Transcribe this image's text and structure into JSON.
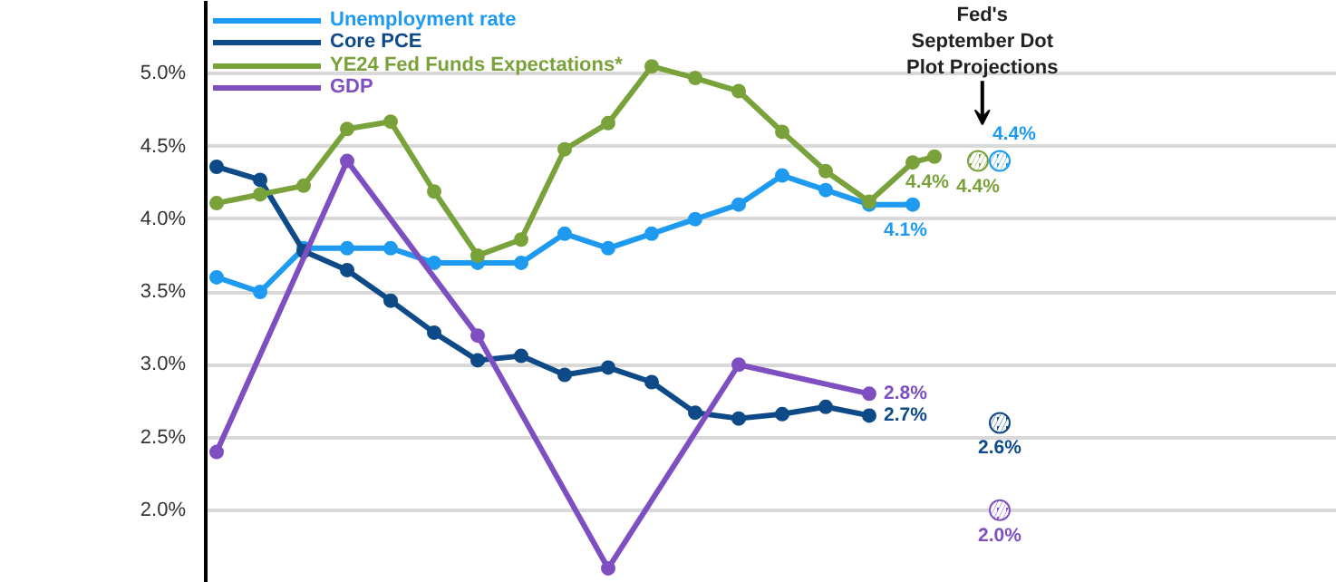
{
  "chart_data": {
    "type": "line",
    "categories": [
      null,
      null,
      null,
      null,
      null,
      null,
      null,
      null,
      null,
      null,
      null,
      null,
      null,
      null,
      null,
      null,
      null,
      null,
      null,
      null,
      null,
      null,
      null,
      null,
      null,
      null,
      null,
      null,
      null,
      null,
      null,
      null,
      null,
      null,
      null,
      null,
      null,
      null,
      null,
      null,
      null,
      null,
      null,
      null,
      null,
      null,
      null,
      null,
      null,
      null,
      null,
      null
    ],
    "ylim": [
      1.5,
      5.5
    ],
    "yticks": [
      {
        "value": 2.0,
        "label": "2.0%"
      },
      {
        "value": 2.5,
        "label": "2.5%"
      },
      {
        "value": 3.0,
        "label": "3.0%"
      },
      {
        "value": 3.5,
        "label": "3.5%"
      },
      {
        "value": 4.0,
        "label": "4.0%"
      },
      {
        "value": 4.5,
        "label": "4.5%"
      },
      {
        "value": 5.0,
        "label": "5.0%"
      }
    ],
    "tick_labels": "y",
    "grid": "y",
    "legend": "top left",
    "marker": "circle",
    "line_style": "solid",
    "annotations": [
      "Fed's\nSeptember Dot\nPlot Projections"
    ],
    "series": [
      {
        "name": "Unemployment rate",
        "color": "#1e9bf0",
        "values": [
          3.6,
          null,
          3.5,
          null,
          3.8,
          null,
          3.8,
          null,
          3.8,
          null,
          3.7,
          null,
          3.7,
          null,
          3.7,
          null,
          3.9,
          null,
          3.8,
          null,
          3.9,
          null,
          4.0,
          null,
          4.1,
          null,
          4.3,
          null,
          4.2,
          null,
          4.1,
          null,
          4.1,
          null,
          null,
          null,
          null,
          null,
          null,
          null,
          null,
          null,
          null,
          null,
          null,
          null,
          null,
          null,
          null,
          null,
          null,
          null
        ],
        "value_labels": [
          null,
          null,
          null,
          null,
          null,
          null,
          null,
          null,
          null,
          null,
          null,
          null,
          null,
          null,
          null,
          null,
          null,
          null,
          null,
          null,
          null,
          null,
          null,
          null,
          null,
          null,
          null,
          null,
          null,
          null,
          null,
          null,
          "4.1%",
          null,
          null,
          null,
          null,
          null,
          null,
          null,
          null,
          null,
          null,
          null,
          null,
          null,
          null,
          null,
          null,
          null,
          null,
          null
        ]
      },
      {
        "name": "Core PCE",
        "color": "#0d4a87",
        "values": [
          4.36,
          null,
          4.27,
          null,
          3.78,
          null,
          3.65,
          null,
          3.44,
          null,
          3.22,
          null,
          3.03,
          null,
          3.06,
          null,
          2.93,
          null,
          2.98,
          null,
          2.88,
          null,
          2.67,
          null,
          2.63,
          null,
          2.66,
          null,
          2.71,
          null,
          2.65,
          null,
          null,
          null,
          null,
          null,
          null,
          null,
          null,
          null,
          null,
          null,
          null,
          null,
          null,
          null,
          null,
          null,
          null,
          null,
          null,
          null
        ],
        "value_labels": [
          null,
          null,
          null,
          null,
          null,
          null,
          null,
          null,
          null,
          null,
          null,
          null,
          null,
          null,
          null,
          null,
          null,
          null,
          null,
          null,
          null,
          null,
          null,
          null,
          null,
          null,
          null,
          null,
          null,
          null,
          "2.7%",
          null,
          null,
          null,
          null,
          null,
          null,
          null,
          null,
          null,
          null,
          null,
          null,
          null,
          null,
          null,
          null,
          null,
          null,
          null,
          null,
          null
        ]
      },
      {
        "name": "YE24 Fed Funds Expectations*",
        "color": "#7aa23a",
        "values": [
          4.11,
          null,
          4.17,
          null,
          4.23,
          null,
          4.62,
          null,
          4.67,
          null,
          4.19,
          null,
          3.75,
          null,
          3.86,
          null,
          4.48,
          null,
          4.66,
          null,
          5.05,
          null,
          4.97,
          null,
          4.88,
          null,
          4.6,
          null,
          4.33,
          null,
          4.12,
          null,
          4.39,
          4.43,
          null,
          null,
          null,
          null,
          null,
          null,
          null,
          null,
          null,
          null,
          null,
          null,
          null,
          null,
          null,
          null,
          null,
          null
        ],
        "value_labels": [
          null,
          null,
          null,
          null,
          null,
          null,
          null,
          null,
          null,
          null,
          null,
          null,
          null,
          null,
          null,
          null,
          null,
          null,
          null,
          null,
          null,
          null,
          null,
          null,
          null,
          null,
          null,
          null,
          null,
          null,
          null,
          null,
          null,
          "4.4%",
          null,
          null,
          null,
          null,
          null,
          null,
          null,
          null,
          null,
          null,
          null,
          null,
          null,
          null,
          null,
          null,
          null,
          null
        ]
      },
      {
        "name": "GDP",
        "color": "#7e4fc0",
        "values": [
          2.4,
          null,
          null,
          null,
          null,
          null,
          4.4,
          null,
          null,
          null,
          null,
          null,
          3.2,
          null,
          null,
          null,
          null,
          null,
          1.6,
          null,
          null,
          null,
          null,
          null,
          3.0,
          null,
          null,
          null,
          null,
          null,
          2.8,
          null,
          null,
          null,
          null,
          null,
          null,
          null,
          null,
          null,
          null,
          null,
          null,
          null,
          null,
          null,
          null,
          null,
          null,
          null,
          null,
          null
        ],
        "value_labels": [
          null,
          null,
          null,
          null,
          null,
          null,
          null,
          null,
          null,
          null,
          null,
          null,
          null,
          null,
          null,
          null,
          null,
          null,
          null,
          null,
          null,
          null,
          null,
          null,
          null,
          null,
          null,
          null,
          null,
          null,
          "2.8%",
          null,
          null,
          null,
          null,
          null,
          null,
          null,
          null,
          null,
          null,
          null,
          null,
          null,
          null,
          null,
          null,
          null,
          null,
          null,
          null,
          null
        ]
      },
      {
        "type": "scatter",
        "color": "#7aa23a",
        "values": [
          null,
          null,
          null,
          null,
          null,
          null,
          null,
          null,
          null,
          null,
          null,
          null,
          null,
          null,
          null,
          null,
          null,
          null,
          null,
          null,
          null,
          null,
          null,
          null,
          null,
          null,
          null,
          null,
          null,
          null,
          null,
          null,
          null,
          null,
          null,
          4.4,
          null,
          null,
          null,
          null,
          null,
          null,
          null,
          null,
          null,
          null,
          null,
          null,
          null,
          null,
          null,
          null
        ],
        "value_labels": [
          null,
          null,
          null,
          null,
          null,
          null,
          null,
          null,
          null,
          null,
          null,
          null,
          null,
          null,
          null,
          null,
          null,
          null,
          null,
          null,
          null,
          null,
          null,
          null,
          null,
          null,
          null,
          null,
          null,
          null,
          null,
          null,
          null,
          null,
          null,
          "4.4%",
          null,
          null,
          null,
          null,
          null,
          null,
          null,
          null,
          null,
          null,
          null,
          null,
          null,
          null,
          null,
          null
        ]
      },
      {
        "type": "scatter",
        "color": "#1e9bf0",
        "values": [
          null,
          null,
          null,
          null,
          null,
          null,
          null,
          null,
          null,
          null,
          null,
          null,
          null,
          null,
          null,
          null,
          null,
          null,
          null,
          null,
          null,
          null,
          null,
          null,
          null,
          null,
          null,
          null,
          null,
          null,
          null,
          null,
          null,
          null,
          null,
          null,
          4.4,
          null,
          null,
          null,
          null,
          null,
          null,
          null,
          null,
          null,
          null,
          null,
          null,
          null,
          null,
          null
        ],
        "value_labels": [
          null,
          null,
          null,
          null,
          null,
          null,
          null,
          null,
          null,
          null,
          null,
          null,
          null,
          null,
          null,
          null,
          null,
          null,
          null,
          null,
          null,
          null,
          null,
          null,
          null,
          null,
          null,
          null,
          null,
          null,
          null,
          null,
          null,
          null,
          null,
          null,
          "4.4%",
          null,
          null,
          null,
          null,
          null,
          null,
          null,
          null,
          null,
          null,
          null,
          null,
          null,
          null,
          null
        ]
      },
      {
        "type": "scatter",
        "color": "#0d4a87",
        "values": [
          null,
          null,
          null,
          null,
          null,
          null,
          null,
          null,
          null,
          null,
          null,
          null,
          null,
          null,
          null,
          null,
          null,
          null,
          null,
          null,
          null,
          null,
          null,
          null,
          null,
          null,
          null,
          null,
          null,
          null,
          null,
          null,
          null,
          null,
          null,
          null,
          2.6,
          null,
          null,
          null,
          null,
          null,
          null,
          null,
          null,
          null,
          null,
          null,
          null,
          null,
          null,
          null
        ],
        "value_labels": [
          null,
          null,
          null,
          null,
          null,
          null,
          null,
          null,
          null,
          null,
          null,
          null,
          null,
          null,
          null,
          null,
          null,
          null,
          null,
          null,
          null,
          null,
          null,
          null,
          null,
          null,
          null,
          null,
          null,
          null,
          null,
          null,
          null,
          null,
          null,
          null,
          "2.6%",
          null,
          null,
          null,
          null,
          null,
          null,
          null,
          null,
          null,
          null,
          null,
          null,
          null,
          null,
          null
        ]
      },
      {
        "type": "scatter",
        "color": "#7e4fc0",
        "values": [
          null,
          null,
          null,
          null,
          null,
          null,
          null,
          null,
          null,
          null,
          null,
          null,
          null,
          null,
          null,
          null,
          null,
          null,
          null,
          null,
          null,
          null,
          null,
          null,
          null,
          null,
          null,
          null,
          null,
          null,
          null,
          null,
          null,
          null,
          null,
          null,
          2.0,
          null,
          null,
          null,
          null,
          null,
          null,
          null,
          null,
          null,
          null,
          null,
          null,
          null,
          null,
          null
        ],
        "value_labels": [
          null,
          null,
          null,
          null,
          null,
          null,
          null,
          null,
          null,
          null,
          null,
          null,
          null,
          null,
          null,
          null,
          null,
          null,
          null,
          null,
          null,
          null,
          null,
          null,
          null,
          null,
          null,
          null,
          null,
          null,
          null,
          null,
          null,
          null,
          null,
          null,
          "2.0%",
          null,
          null,
          null,
          null,
          null,
          null,
          null,
          null,
          null,
          null,
          null,
          null,
          null,
          null,
          null
        ]
      }
    ]
  }
}
